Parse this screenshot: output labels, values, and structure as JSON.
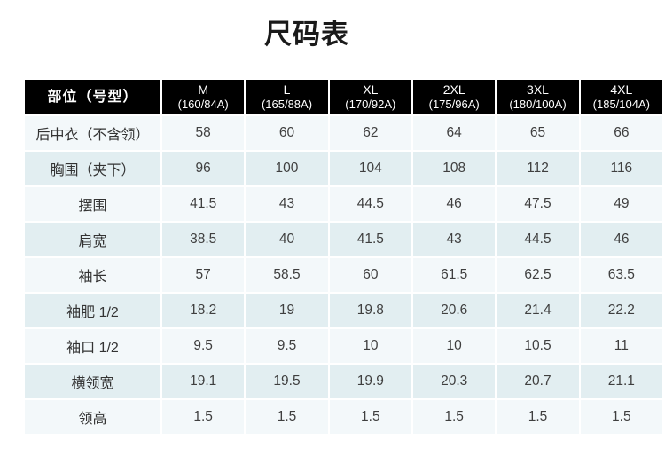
{
  "title": "尺码表",
  "table": {
    "header": {
      "label": "部位（号型）",
      "sizes": [
        {
          "name": "M",
          "spec": "(160/84A)"
        },
        {
          "name": "L",
          "spec": "(165/88A)"
        },
        {
          "name": "XL",
          "spec": "(170/92A)"
        },
        {
          "name": "2XL",
          "spec": "(175/96A)"
        },
        {
          "name": "3XL",
          "spec": "(180/100A)"
        },
        {
          "name": "4XL",
          "spec": "(185/104A)"
        }
      ]
    },
    "rows": [
      {
        "label": "后中衣（不含领）",
        "values": [
          "58",
          "60",
          "62",
          "64",
          "65",
          "66"
        ]
      },
      {
        "label": "胸围（夹下）",
        "values": [
          "96",
          "100",
          "104",
          "108",
          "112",
          "116"
        ]
      },
      {
        "label": "摆围",
        "values": [
          "41.5",
          "43",
          "44.5",
          "46",
          "47.5",
          "49"
        ]
      },
      {
        "label": "肩宽",
        "values": [
          "38.5",
          "40",
          "41.5",
          "43",
          "44.5",
          "46"
        ]
      },
      {
        "label": "袖长",
        "values": [
          "57",
          "58.5",
          "60",
          "61.5",
          "62.5",
          "63.5"
        ]
      },
      {
        "label": "袖肥 1/2",
        "values": [
          "18.2",
          "19",
          "19.8",
          "20.6",
          "21.4",
          "22.2"
        ]
      },
      {
        "label": "袖口 1/2",
        "values": [
          "9.5",
          "9.5",
          "10",
          "10",
          "10.5",
          "11"
        ]
      },
      {
        "label": "横领宽",
        "values": [
          "19.1",
          "19.5",
          "19.9",
          "20.3",
          "20.7",
          "21.1"
        ]
      },
      {
        "label": "领高",
        "values": [
          "1.5",
          "1.5",
          "1.5",
          "1.5",
          "1.5",
          "1.5"
        ]
      }
    ]
  },
  "chart_data": {
    "type": "table",
    "title": "尺码表",
    "columns": [
      "部位（号型）",
      "M (160/84A)",
      "L (165/88A)",
      "XL (170/92A)",
      "2XL (175/96A)",
      "3XL (180/100A)",
      "4XL (185/104A)"
    ],
    "rows": [
      [
        "后中衣（不含领）",
        58,
        60,
        62,
        64,
        65,
        66
      ],
      [
        "胸围（夹下）",
        96,
        100,
        104,
        108,
        112,
        116
      ],
      [
        "摆围",
        41.5,
        43,
        44.5,
        46,
        47.5,
        49
      ],
      [
        "肩宽",
        38.5,
        40,
        41.5,
        43,
        44.5,
        46
      ],
      [
        "袖长",
        57,
        58.5,
        60,
        61.5,
        62.5,
        63.5
      ],
      [
        "袖肥 1/2",
        18.2,
        19,
        19.8,
        20.6,
        21.4,
        22.2
      ],
      [
        "袖口 1/2",
        9.5,
        9.5,
        10,
        10,
        10.5,
        11
      ],
      [
        "横领宽",
        19.1,
        19.5,
        19.9,
        20.3,
        20.7,
        21.1
      ],
      [
        "领高",
        1.5,
        1.5,
        1.5,
        1.5,
        1.5,
        1.5
      ]
    ]
  },
  "colors": {
    "header_bg": "#000000",
    "header_text": "#ffffff",
    "row_light": "#f3f8fa",
    "row_dark": "#e2eef1",
    "separator": "#ffffff",
    "value_text": "#3f3f3f",
    "title_text": "#1a1a1a"
  }
}
